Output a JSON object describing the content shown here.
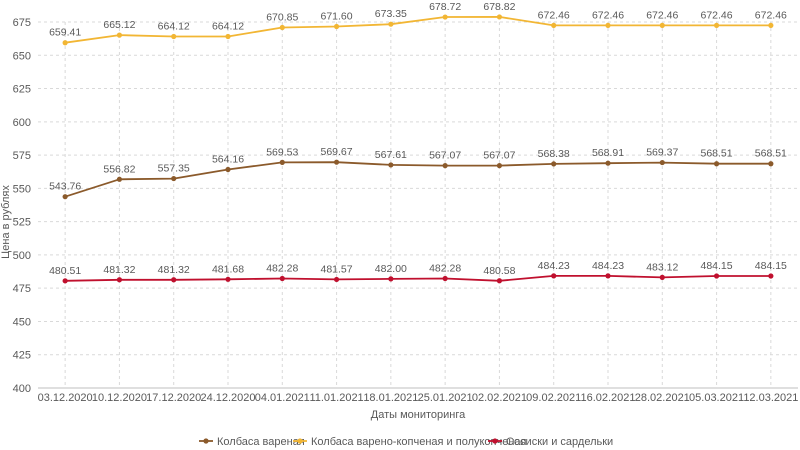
{
  "chart_data": {
    "type": "line",
    "title": "",
    "xlabel": "Даты мониторинга",
    "ylabel": "Цена в рублях",
    "ylim": [
      400,
      675
    ],
    "yticks": [
      400,
      425,
      450,
      475,
      500,
      525,
      550,
      575,
      600,
      625,
      650,
      675
    ],
    "grid": true,
    "legend_position": "bottom",
    "categories": [
      "03.12.2020",
      "10.12.2020",
      "17.12.2020",
      "24.12.2020",
      "04.01.2021",
      "11.01.2021",
      "18.01.2021",
      "25.01.2021",
      "02.02.2021",
      "09.02.2021",
      "16.02.2021",
      "28.02.2021",
      "05.03.2021",
      "12.03.2021"
    ],
    "series": [
      {
        "name": "Колбаса вареная",
        "color": "#8B5A2B",
        "values": [
          543.76,
          556.82,
          557.35,
          564.16,
          569.53,
          569.67,
          567.61,
          567.07,
          567.07,
          568.38,
          568.91,
          569.37,
          568.51,
          568.51
        ],
        "labels": [
          "543.76",
          "556.82",
          "557.35",
          "564.16",
          "569.53",
          "569.67",
          "567.61",
          "567.07",
          "567.07",
          "568.38",
          "568.91",
          "569.37",
          "568.51",
          "568.51"
        ]
      },
      {
        "name": "Колбаса варено-копченая и полукопченая",
        "color": "#F2B634",
        "values": [
          659.41,
          665.12,
          664.12,
          664.12,
          670.85,
          671.6,
          673.35,
          678.72,
          678.82,
          672.46,
          672.46,
          672.46,
          672.46,
          672.46
        ],
        "labels": [
          "659.41",
          "665.12",
          "664.12",
          "664.12",
          "670.85",
          "671.60",
          "673.35",
          "678.72",
          "678.82",
          "672.46",
          "672.46",
          "672.46",
          "672.46",
          "672.46"
        ]
      },
      {
        "name": "Сосиски и сардельки",
        "color": "#C0102E",
        "values": [
          480.51,
          481.32,
          481.32,
          481.68,
          482.28,
          481.57,
          482.0,
          482.28,
          480.58,
          484.23,
          484.23,
          483.12,
          484.15,
          484.15
        ],
        "labels": [
          "480.51",
          "481.32",
          "481.32",
          "481.68",
          "482.28",
          "481.57",
          "482.00",
          "482.28",
          "480.58",
          "484.23",
          "484.23",
          "483.12",
          "484.15",
          "484.15"
        ]
      }
    ]
  }
}
